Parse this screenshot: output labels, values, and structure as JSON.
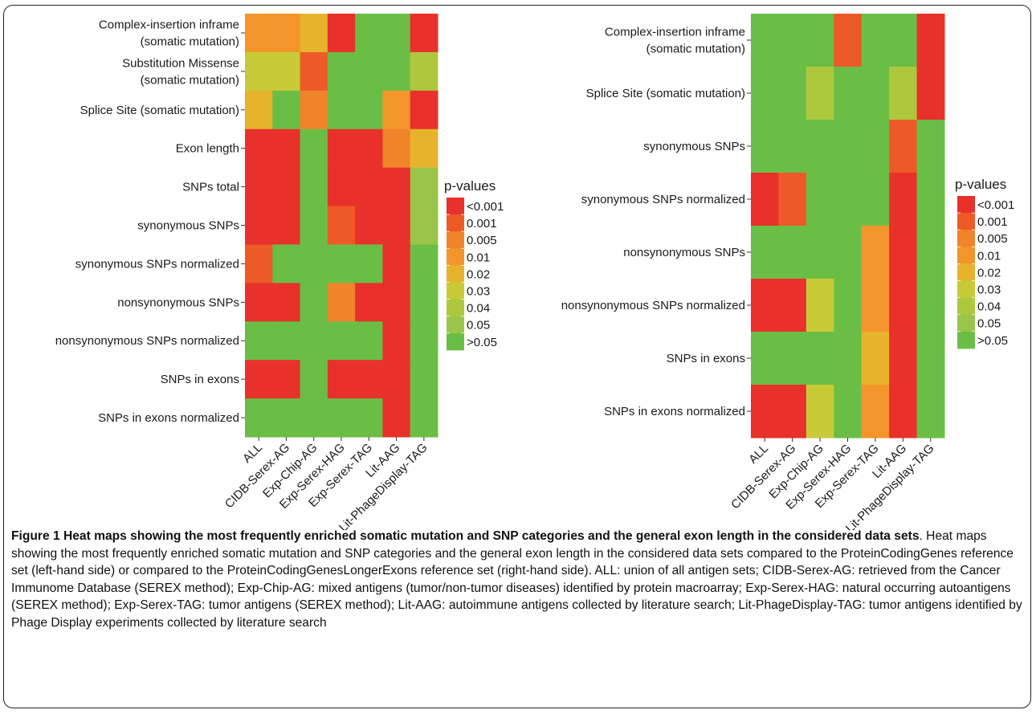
{
  "colors": {
    "lt0001": "#E8312A",
    "p0001": "#EE5A27",
    "p0005": "#F0842A",
    "p001": "#F3952A",
    "p002": "#E8B32C",
    "p003": "#C8CB37",
    "p004": "#ADC83D",
    "p005": "#9BC54A",
    "gt005": "#6BBE45"
  },
  "chart_data": [
    {
      "type": "heatmap",
      "columns": [
        "ALL",
        "CIDB-Serex-AG",
        "Exp-Chip-AG",
        "Exp-Serex-HAG",
        "Exp-Serex-TAG",
        "Lit-AAG",
        "Lit-PhageDisplay-TAG"
      ],
      "rows": [
        "Complex-insertion inframe\n(somatic mutation)",
        "Substitution Missense\n(somatic mutation)",
        "Splice Site (somatic mutation)",
        "Exon length",
        "SNPs total",
        "synonymous SNPs",
        "synonymous SNPs normalized",
        "nonsynonymous SNPs",
        "nonsynonymous SNPs normalized",
        "SNPs in exons",
        "SNPs in exons normalized"
      ],
      "values": [
        [
          "0.01",
          "0.01",
          "0.02",
          "<0.001",
          ">0.05",
          ">0.05",
          "<0.001"
        ],
        [
          "0.03",
          "0.03",
          "0.001",
          ">0.05",
          ">0.05",
          ">0.05",
          "0.04"
        ],
        [
          "0.02",
          ">0.05",
          "0.005",
          ">0.05",
          ">0.05",
          "0.01",
          "<0.001"
        ],
        [
          "<0.001",
          "<0.001",
          ">0.05",
          "<0.001",
          "<0.001",
          "0.005",
          "0.02"
        ],
        [
          "<0.001",
          "<0.001",
          ">0.05",
          "<0.001",
          "<0.001",
          "<0.001",
          "0.05"
        ],
        [
          "<0.001",
          "<0.001",
          ">0.05",
          "0.001",
          "<0.001",
          "<0.001",
          "0.05"
        ],
        [
          "0.001",
          ">0.05",
          ">0.05",
          ">0.05",
          ">0.05",
          "<0.001",
          ">0.05"
        ],
        [
          "<0.001",
          "<0.001",
          ">0.05",
          "0.005",
          "<0.001",
          "<0.001",
          ">0.05"
        ],
        [
          ">0.05",
          ">0.05",
          ">0.05",
          ">0.05",
          ">0.05",
          "<0.001",
          ">0.05"
        ],
        [
          "<0.001",
          "<0.001",
          ">0.05",
          "<0.001",
          "<0.001",
          "<0.001",
          ">0.05"
        ],
        [
          ">0.05",
          ">0.05",
          ">0.05",
          ">0.05",
          ">0.05",
          "<0.001",
          ">0.05"
        ]
      ],
      "legend": {
        "title": "p-values",
        "labels": [
          "<0.001",
          "0.001",
          "0.005",
          "0.01",
          "0.02",
          "0.03",
          "0.04",
          "0.05",
          ">0.05"
        ],
        "placement": "right"
      }
    },
    {
      "type": "heatmap",
      "columns": [
        "ALL",
        "CIDB-Serex-AG",
        "Exp-Chip-AG",
        "Exp-Serex-HAG",
        "Exp-Serex-TAG",
        "Lit-AAG",
        "Lit-PhageDisplay-TAG"
      ],
      "rows": [
        "Complex-insertion inframe\n(somatic mutation)",
        "Splice Site (somatic mutation)",
        "synonymous SNPs",
        "synonymous SNPs normalized",
        "nonsynonymous SNPs",
        "nonsynonymous SNPs normalized",
        "SNPs in exons",
        "SNPs in exons normalized"
      ],
      "values": [
        [
          ">0.05",
          ">0.05",
          ">0.05",
          "0.001",
          ">0.05",
          ">0.05",
          "<0.001"
        ],
        [
          ">0.05",
          ">0.05",
          "0.04",
          ">0.05",
          ">0.05",
          "0.04",
          "<0.001"
        ],
        [
          ">0.05",
          ">0.05",
          ">0.05",
          ">0.05",
          ">0.05",
          "0.001",
          ">0.05"
        ],
        [
          "<0.001",
          "0.001",
          ">0.05",
          ">0.05",
          ">0.05",
          "<0.001",
          ">0.05"
        ],
        [
          ">0.05",
          ">0.05",
          ">0.05",
          ">0.05",
          "0.01",
          "<0.001",
          ">0.05"
        ],
        [
          "<0.001",
          "<0.001",
          "0.03",
          ">0.05",
          "0.01",
          "<0.001",
          ">0.05"
        ],
        [
          ">0.05",
          ">0.05",
          ">0.05",
          ">0.05",
          "0.02",
          "<0.001",
          ">0.05"
        ],
        [
          "<0.001",
          "<0.001",
          "0.03",
          ">0.05",
          "0.01",
          "<0.001",
          ">0.05"
        ]
      ],
      "legend": {
        "title": "p-values",
        "labels": [
          "<0.001",
          "0.001",
          "0.005",
          "0.01",
          "0.02",
          "0.03",
          "0.04",
          "0.05",
          ">0.05"
        ],
        "placement": "right"
      }
    }
  ],
  "caption": {
    "bold": "Figure 1 Heat maps showing the most frequently enriched somatic mutation and SNP categories and the general exon length in the considered data sets",
    "text": ". Heat maps showing the most frequently enriched somatic mutation and SNP categories and the general exon length in the considered data sets compared to the ProteinCodingGenes reference set (left-hand side) or compared to the ProteinCodingGenesLongerExons reference set (right-hand side). ALL: union of all antigen sets; CIDB-Serex-AG: retrieved from the Cancer Immunome Database (SEREX method); Exp-Chip-AG: mixed antigens (tumor/non-tumor diseases) identified by protein macroarray; Exp-Serex-HAG: natural occurring autoantigens (SEREX method); Exp-Serex-TAG: tumor antigens (SEREX method); Lit-AAG: autoimmune antigens collected by literature search; Lit-PhageDisplay-TAG: tumor antigens identified by Phage Display experiments collected by literature search"
  }
}
